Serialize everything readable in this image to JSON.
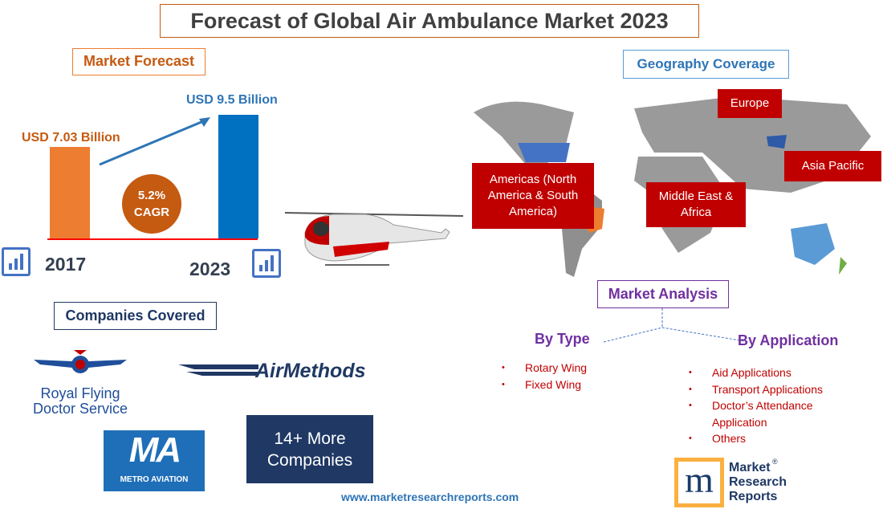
{
  "title": "Forecast of Global Air Ambulance Market 2023",
  "market_forecast": {
    "heading": "Market Forecast",
    "cagr_value": "5.2%",
    "cagr_label": "CAGR"
  },
  "chart_data": {
    "type": "bar",
    "categories": [
      "2017",
      "2023"
    ],
    "values": [
      7.03,
      9.5
    ],
    "data_labels": [
      "USD 7.03 Billion",
      "USD 9.5 Billion"
    ],
    "colors": [
      "#ed7d31",
      "#0070c0"
    ],
    "baseline_color": "#ff0000",
    "ylim": [
      0,
      9.5
    ]
  },
  "geography": {
    "heading": "Geography Coverage",
    "regions": [
      "Europe",
      "Americas (North America & South America)",
      "Asia Pacific",
      "Middle East & Africa"
    ],
    "region_color": "#c00000"
  },
  "companies": {
    "heading": "Companies Covered",
    "logos": [
      "Royal Flying Doctor Service",
      "AirMethods",
      "METRO AVIATION"
    ],
    "more": "14+ More Companies"
  },
  "analysis": {
    "heading": "Market Analysis",
    "by_type": {
      "heading": "By Type",
      "items": [
        "Rotary Wing",
        "Fixed Wing"
      ]
    },
    "by_application": {
      "heading": "By Application",
      "items": [
        "Aid Applications",
        "Transport Applications",
        "Doctor’s Attendance Application",
        "Others"
      ]
    }
  },
  "footer": {
    "url": "www.marketresearchreports.com",
    "logo_text": "Market Research Reports",
    "logo_mark": "m",
    "registered": "®"
  }
}
